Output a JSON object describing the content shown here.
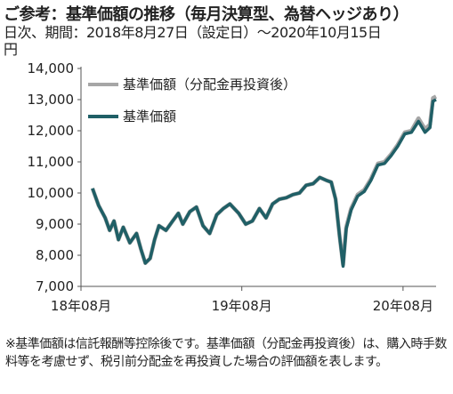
{
  "header": {
    "title": "ご参考：基準価額の推移（毎月決算型、為替ヘッジあり）",
    "subtitle": "日次、期間：2018年8月27日（設定日）～2020年10月15日",
    "unit": "円"
  },
  "footnote": "※基準価額は信託報酬等控除後です。基準価額（分配金再投資後）は、購入時手数料等を考慮せず、税引前分配金を再投資した場合の評価額を表します。",
  "colors": {
    "reinvested": "#a6a6a6",
    "nav": "#1f5f66",
    "axis": "#555555"
  },
  "chart_data": {
    "type": "line",
    "ylim": [
      7000,
      14000
    ],
    "yticks": [
      "7,000",
      "8,000",
      "9,000",
      "10,000",
      "11,000",
      "12,000",
      "13,000",
      "14,000"
    ],
    "ytick_values": [
      7000,
      8000,
      9000,
      10000,
      11000,
      12000,
      13000,
      14000
    ],
    "xticks": [
      {
        "label": "18年08月",
        "date": "2018-08-01"
      },
      {
        "label": "19年08月",
        "date": "2019-08-01"
      },
      {
        "label": "20年08月",
        "date": "2020-08-01"
      }
    ],
    "xlim": [
      "2018-08-01",
      "2020-10-15"
    ],
    "legend": "top-left",
    "series": [
      {
        "name": "基準価額（分配金再投資後）",
        "style": "reinvested",
        "x": [
          "2018-08-27",
          "2018-09-10",
          "2018-09-25",
          "2018-10-05",
          "2018-10-15",
          "2018-10-25",
          "2018-11-05",
          "2018-11-20",
          "2018-12-05",
          "2018-12-15",
          "2018-12-25",
          "2019-01-05",
          "2019-01-15",
          "2019-01-25",
          "2019-02-10",
          "2019-02-25",
          "2019-03-10",
          "2019-03-20",
          "2019-04-05",
          "2019-04-20",
          "2019-05-05",
          "2019-05-20",
          "2019-06-05",
          "2019-06-20",
          "2019-07-05",
          "2019-07-25",
          "2019-08-10",
          "2019-08-25",
          "2019-09-10",
          "2019-09-25",
          "2019-10-10",
          "2019-10-25",
          "2019-11-10",
          "2019-11-25",
          "2019-12-10",
          "2019-12-25",
          "2020-01-10",
          "2020-01-25",
          "2020-02-10",
          "2020-02-20",
          "2020-03-01",
          "2020-03-10",
          "2020-03-18",
          "2020-03-25",
          "2020-04-05",
          "2020-04-20",
          "2020-05-05",
          "2020-05-20",
          "2020-06-05",
          "2020-06-20",
          "2020-07-05",
          "2020-07-20",
          "2020-08-05",
          "2020-08-20",
          "2020-09-05",
          "2020-09-20",
          "2020-10-01",
          "2020-10-08",
          "2020-10-15"
        ],
        "y": [
          10150,
          9600,
          9200,
          8800,
          9100,
          8500,
          8900,
          8400,
          8700,
          8200,
          7750,
          7900,
          8500,
          8950,
          8800,
          9100,
          9350,
          9000,
          9400,
          9550,
          8950,
          8700,
          9300,
          9500,
          9650,
          9350,
          9000,
          9100,
          9500,
          9200,
          9650,
          9800,
          9850,
          9950,
          10000,
          10250,
          10300,
          10500,
          10400,
          10350,
          9800,
          8600,
          7700,
          8900,
          9500,
          9950,
          10100,
          10450,
          10950,
          11000,
          11250,
          11550,
          11950,
          12000,
          12400,
          12050,
          12200,
          13050,
          13100
        ]
      },
      {
        "name": "基準価額",
        "style": "nav",
        "x": [
          "2018-08-27",
          "2018-09-10",
          "2018-09-25",
          "2018-10-05",
          "2018-10-15",
          "2018-10-25",
          "2018-11-05",
          "2018-11-20",
          "2018-12-05",
          "2018-12-15",
          "2018-12-25",
          "2019-01-05",
          "2019-01-15",
          "2019-01-25",
          "2019-02-10",
          "2019-02-25",
          "2019-03-10",
          "2019-03-20",
          "2019-04-05",
          "2019-04-20",
          "2019-05-05",
          "2019-05-20",
          "2019-06-05",
          "2019-06-20",
          "2019-07-05",
          "2019-07-25",
          "2019-08-10",
          "2019-08-25",
          "2019-09-10",
          "2019-09-25",
          "2019-10-10",
          "2019-10-25",
          "2019-11-10",
          "2019-11-25",
          "2019-12-10",
          "2019-12-25",
          "2020-01-10",
          "2020-01-25",
          "2020-02-10",
          "2020-02-20",
          "2020-03-01",
          "2020-03-10",
          "2020-03-18",
          "2020-03-25",
          "2020-04-05",
          "2020-04-20",
          "2020-05-05",
          "2020-05-20",
          "2020-06-05",
          "2020-06-20",
          "2020-07-05",
          "2020-07-20",
          "2020-08-05",
          "2020-08-20",
          "2020-09-05",
          "2020-09-20",
          "2020-10-01",
          "2020-10-08",
          "2020-10-15"
        ],
        "y": [
          10150,
          9600,
          9200,
          8800,
          9100,
          8500,
          8900,
          8400,
          8700,
          8200,
          7750,
          7900,
          8500,
          8950,
          8800,
          9100,
          9350,
          9000,
          9400,
          9550,
          8950,
          8700,
          9300,
          9500,
          9650,
          9350,
          9000,
          9100,
          9500,
          9200,
          9650,
          9800,
          9850,
          9950,
          10000,
          10250,
          10300,
          10500,
          10400,
          10350,
          9800,
          8600,
          7650,
          8850,
          9450,
          9900,
          10050,
          10400,
          10900,
          10950,
          11200,
          11500,
          11900,
          11950,
          12300,
          11950,
          12100,
          12950,
          13000
        ]
      }
    ]
  }
}
